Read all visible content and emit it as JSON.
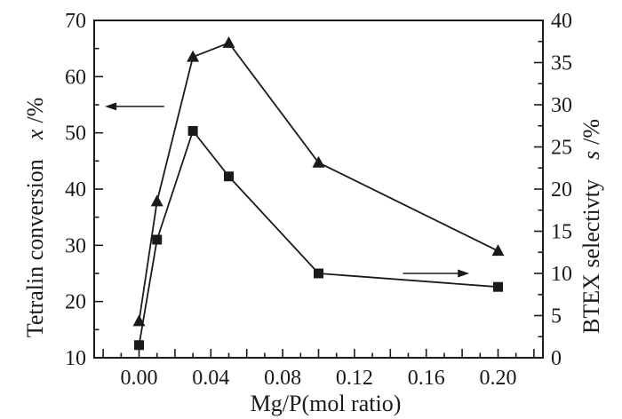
{
  "chart_data": {
    "type": "line",
    "title": "",
    "xlabel": "Mg/P(mol ratio)",
    "grid": false,
    "legend": "none",
    "axes": {
      "x": {
        "min": -0.025,
        "max": 0.225,
        "major_step": 0.02,
        "minor_step": 0.01,
        "label_values": [
          0.0,
          0.04,
          0.08,
          0.12,
          0.16,
          0.2
        ],
        "tick_labels": [
          "0.00",
          "0.04",
          "0.08",
          "0.12",
          "0.16",
          "0.20"
        ]
      },
      "y_left": {
        "min": 10,
        "max": 70,
        "major_step": 10,
        "minor_step": 5,
        "label_values": [
          10,
          20,
          30,
          40,
          50,
          60,
          70
        ],
        "tick_labels": [
          "10",
          "20",
          "30",
          "40",
          "50",
          "60",
          "70"
        ],
        "title": {
          "text": "Tetralin conversion",
          "var": "x",
          "unit": "/%"
        }
      },
      "y_right": {
        "min": 0,
        "max": 40,
        "major_step": 5,
        "minor_step": 2.5,
        "label_values": [
          0,
          5,
          10,
          15,
          20,
          25,
          30,
          35,
          40
        ],
        "tick_labels": [
          "0",
          "5",
          "10",
          "15",
          "20",
          "25",
          "30",
          "35",
          "40"
        ],
        "title": {
          "text": "BTEX selectivty",
          "var": "s",
          "unit": "/%"
        }
      }
    },
    "series": [
      {
        "name": "tetralin-conversion",
        "axis": "left",
        "marker": "triangle",
        "x": [
          0.0,
          0.01,
          0.03,
          0.05,
          0.1,
          0.2
        ],
        "y": [
          16.5,
          37.8,
          63.5,
          66,
          44.7,
          29
        ]
      },
      {
        "name": "btex-selectivity",
        "axis": "right",
        "marker": "square",
        "x": [
          0.0,
          0.01,
          0.03,
          0.05,
          0.1,
          0.2
        ],
        "y": [
          1.5,
          14,
          26.9,
          21.5,
          10,
          8.4
        ]
      }
    ],
    "annotations": [
      {
        "type": "arrow",
        "direction": "left",
        "axis": "left",
        "y": 54.7,
        "x_from": 0.014,
        "x_to": -0.019
      },
      {
        "type": "arrow",
        "direction": "right",
        "axis": "right",
        "y": 10,
        "x_from": 0.147,
        "x_to": 0.184
      }
    ],
    "colors": {
      "foreground": "#1a1a1a",
      "background": "#ffffff"
    }
  }
}
